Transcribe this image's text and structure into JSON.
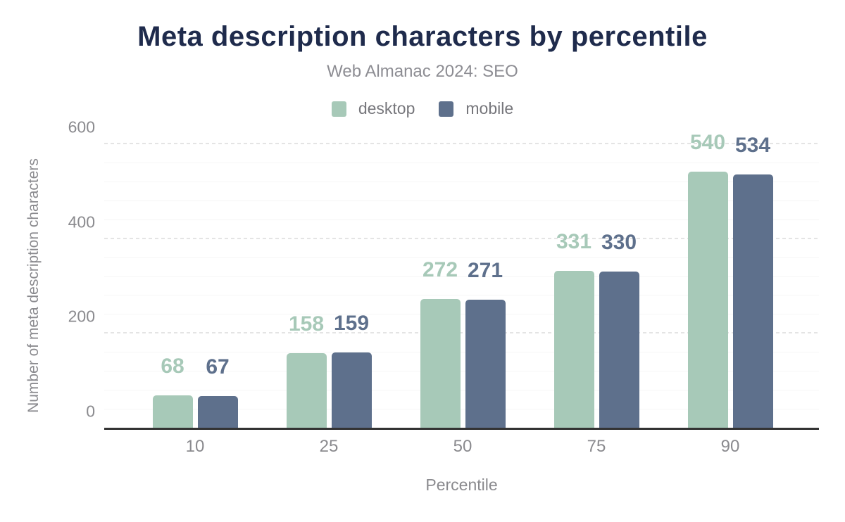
{
  "chart_data": {
    "type": "bar",
    "title": "Meta description characters by percentile",
    "subtitle": "Web Almanac 2024: SEO",
    "categories": [
      "10",
      "25",
      "50",
      "75",
      "90"
    ],
    "series": [
      {
        "name": "desktop",
        "color": "#a7c9b8",
        "values": [
          68,
          158,
          272,
          331,
          540
        ]
      },
      {
        "name": "mobile",
        "color": "#5e708c",
        "values": [
          67,
          159,
          271,
          330,
          534
        ]
      }
    ],
    "xlabel": "Percentile",
    "ylabel": "Number of meta description characters",
    "ylim": [
      0,
      600
    ],
    "yticks": [
      0,
      200,
      400,
      600
    ],
    "minor_tick_step": 40,
    "grid": true,
    "legend_position": "top",
    "colors": {
      "title_text": "#1f2b4c",
      "muted_text": "#8a8a8e",
      "axis_line": "#333333",
      "major_gridline": "#e4e4e4",
      "minor_gridline": "#f6f6f6"
    }
  }
}
